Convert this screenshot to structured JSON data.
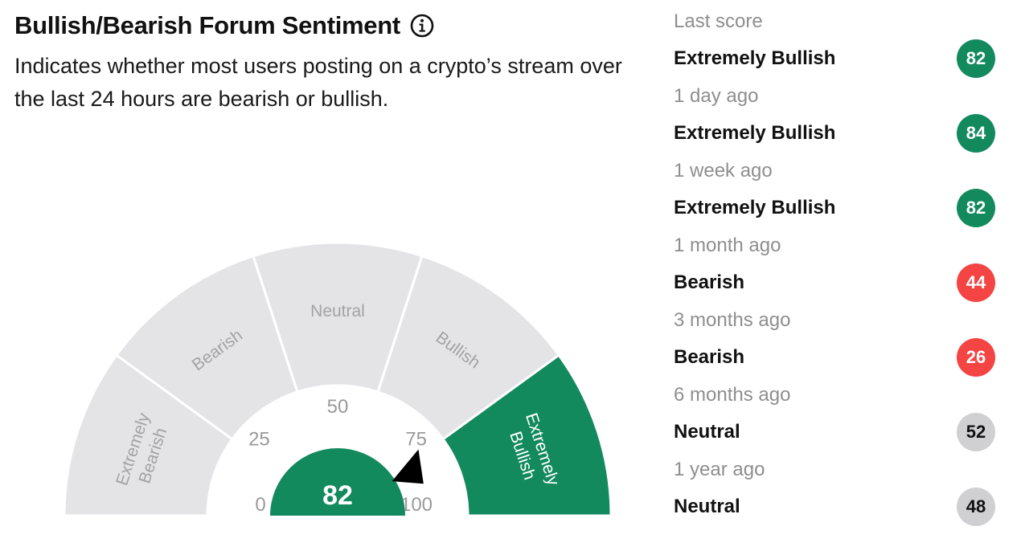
{
  "header": {
    "title": "Bullish/Bearish Forum Sentiment",
    "subtitle": "Indicates whether most users posting on a crypto’s stream over the last 24 hours are bearish or bullish."
  },
  "gauge": {
    "current_value": "82",
    "current_value_numeric": 82,
    "active_segment": "Extremely Bullish",
    "segments": [
      "Extremely Bearish",
      "Bearish",
      "Neutral",
      "Bullish",
      "Extremely Bullish"
    ],
    "ticks": [
      "0",
      "25",
      "50",
      "75",
      "100"
    ],
    "colors": {
      "active": "#138a5e",
      "inactive": "#e4e4e7",
      "inactive_text": "#a3a3a6",
      "tick_text": "#9a9a9a",
      "pointer": "#000000"
    }
  },
  "history": {
    "entries": [
      {
        "when": "Last score",
        "label": "Extremely Bullish",
        "score": "82",
        "tone": "green"
      },
      {
        "when": "1 day ago",
        "label": "Extremely Bullish",
        "score": "84",
        "tone": "green"
      },
      {
        "when": "1 week ago",
        "label": "Extremely Bullish",
        "score": "82",
        "tone": "green"
      },
      {
        "when": "1 month ago",
        "label": "Bearish",
        "score": "44",
        "tone": "red"
      },
      {
        "when": "3 months ago",
        "label": "Bearish",
        "score": "26",
        "tone": "red"
      },
      {
        "when": "6 months ago",
        "label": "Neutral",
        "score": "52",
        "tone": "grey"
      },
      {
        "when": "1 year ago",
        "label": "Neutral",
        "score": "48",
        "tone": "grey"
      }
    ]
  }
}
